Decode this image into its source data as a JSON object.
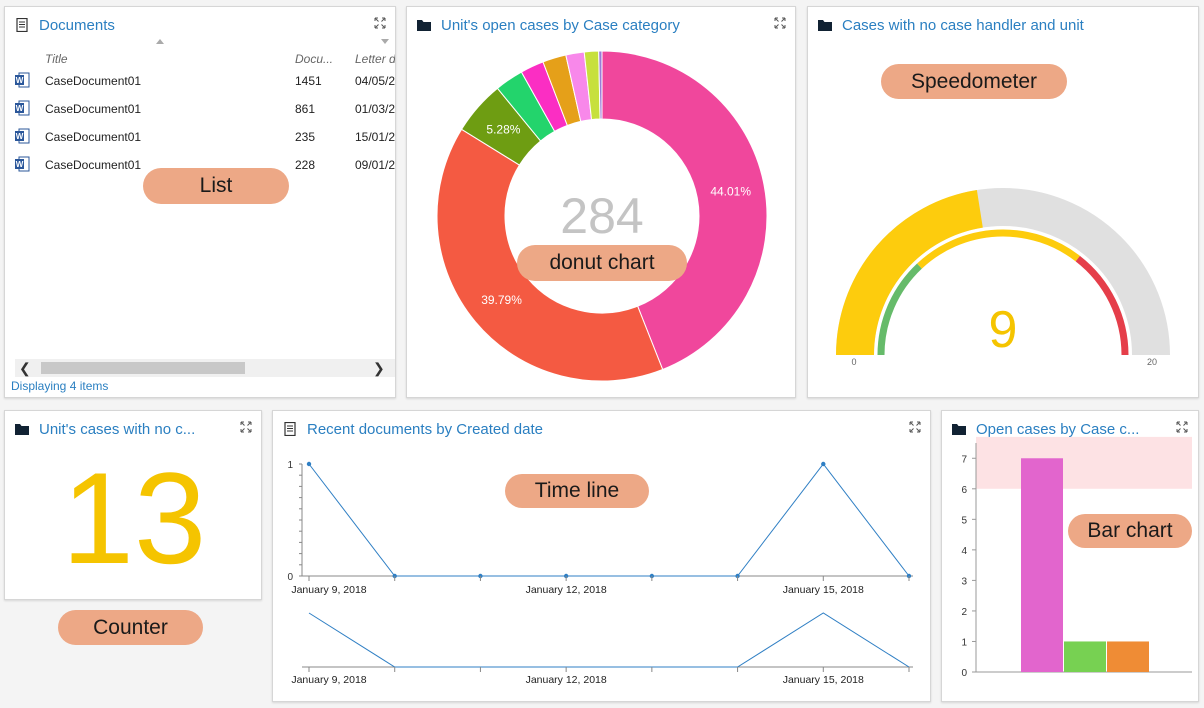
{
  "documents": {
    "title": "Documents",
    "columns": {
      "title": "Title",
      "docnum": "Docu...",
      "letter": "Letter d"
    },
    "rows": [
      {
        "title": "CaseDocument01",
        "docnum": "1451",
        "letter": "04/05/2"
      },
      {
        "title": "CaseDocument01",
        "docnum": "861",
        "letter": "01/03/2"
      },
      {
        "title": "CaseDocument01",
        "docnum": "235",
        "letter": "15/01/2"
      },
      {
        "title": "CaseDocument01",
        "docnum": "228",
        "letter": "09/01/2"
      }
    ],
    "footer": "Displaying 4 items",
    "tag": "List",
    "icon": "document-icon",
    "row_icon": "word-document-icon"
  },
  "donut": {
    "title": "Unit's open cases by Case category",
    "center_value": "284",
    "tag": "donut chart",
    "icon": "folder-icon"
  },
  "speedometer": {
    "title": "Cases with no case handler and unit",
    "value": "9",
    "min_label": "0",
    "max_label": "20",
    "tag": "Speedometer",
    "icon": "folder-icon"
  },
  "counter": {
    "title": "Unit's cases with no c...",
    "value": "13",
    "tag": "Counter",
    "icon": "folder-icon"
  },
  "timeline": {
    "title": "Recent documents by Created date",
    "tag": "Time line",
    "icon": "document-icon"
  },
  "barchart": {
    "title": "Open cases by Case c...",
    "tag": "Bar chart",
    "icon": "folder-icon"
  },
  "chart_data": [
    {
      "type": "pie",
      "title": "Unit's open cases by Case category",
      "slices": [
        {
          "value": 44.01,
          "label": "44.01%",
          "color": "#f0479c"
        },
        {
          "value": 39.79,
          "label": "39.79%",
          "color": "#f45a42"
        },
        {
          "value": 5.28,
          "label": "5.28%",
          "color": "#6e9d12"
        },
        {
          "value": 2.8,
          "label": "",
          "color": "#23d46c"
        },
        {
          "value": 2.3,
          "label": "",
          "color": "#fb2ec3"
        },
        {
          "value": 2.3,
          "label": "",
          "color": "#e5a019"
        },
        {
          "value": 1.8,
          "label": "",
          "color": "#f888ea"
        },
        {
          "value": 1.4,
          "label": "",
          "color": "#c7e03d"
        },
        {
          "value": 0.32,
          "label": "",
          "color": "#9c7ad8"
        }
      ]
    },
    {
      "type": "line",
      "title": "Recent documents by Created date",
      "x": [
        "2018-01-09",
        "2018-01-10",
        "2018-01-11",
        "2018-01-12",
        "2018-01-13",
        "2018-01-14",
        "2018-01-15",
        "2018-01-16"
      ],
      "values": [
        1,
        0,
        0,
        0,
        0,
        0,
        1,
        0
      ],
      "tick_labels": [
        "January 9, 2018",
        "January 12, 2018",
        "January 15, 2018"
      ],
      "ylim": [
        0,
        1
      ],
      "y_ticks": [
        "1",
        "0"
      ],
      "color": "#2f7fc4"
    },
    {
      "type": "bar",
      "title": "Open cases by Case c...",
      "values": [
        7,
        1,
        1
      ],
      "colors": [
        "#e265cd",
        "#77d152",
        "#ef8c35"
      ],
      "ylim": [
        0,
        7.5
      ],
      "y_ticks": [
        "0",
        "1",
        "2",
        "3",
        "4",
        "5",
        "6",
        "7"
      ],
      "highlight_band": [
        6,
        7.7
      ],
      "highlight_color": "#fde2e4"
    }
  ],
  "gauge": {
    "value": 9,
    "min": 0,
    "max": 20,
    "color": "#fdcc0d",
    "track_color": "#e0e0e0",
    "ranges": [
      "#66bb6a",
      "#fdcc0d",
      "#e53e4a"
    ]
  }
}
